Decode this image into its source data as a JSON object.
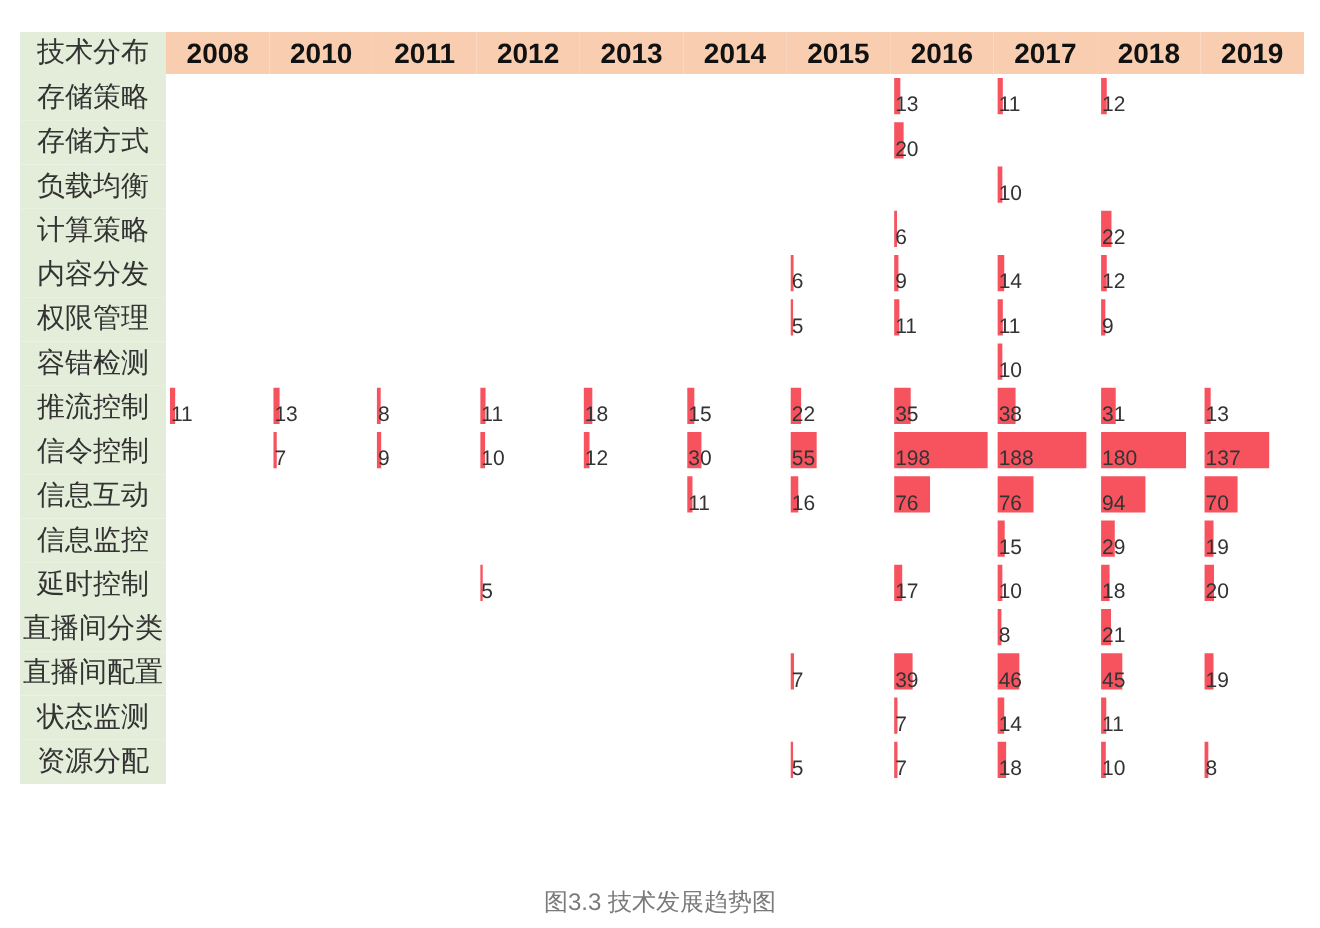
{
  "chart_data": {
    "type": "heatmap",
    "ylabel": "技术分布",
    "annotations": [
      "图3.3 技术发展趋势图"
    ],
    "categories": [
      "2008",
      "2010",
      "2011",
      "2012",
      "2013",
      "2014",
      "2015",
      "2016",
      "2017",
      "2018",
      "2019"
    ],
    "y_categories": [
      "存储策略",
      "存储方式",
      "负载均衡",
      "计算策略",
      "内容分发",
      "权限管理",
      "容错检测",
      "推流控制",
      "信令控制",
      "信息互动",
      "信息监控",
      "延时控制",
      "直播间分类",
      "直播间配置",
      "状态监测",
      "资源分配"
    ],
    "cells": [
      [
        null,
        null,
        null,
        null,
        null,
        null,
        null,
        13,
        11,
        12,
        null
      ],
      [
        null,
        null,
        null,
        null,
        null,
        null,
        null,
        20,
        null,
        null,
        null
      ],
      [
        null,
        null,
        null,
        null,
        null,
        null,
        null,
        null,
        10,
        null,
        null
      ],
      [
        null,
        null,
        null,
        null,
        null,
        null,
        null,
        6,
        null,
        22,
        null
      ],
      [
        null,
        null,
        null,
        null,
        null,
        null,
        6,
        9,
        14,
        12,
        null
      ],
      [
        null,
        null,
        null,
        null,
        null,
        null,
        5,
        11,
        11,
        9,
        null
      ],
      [
        null,
        null,
        null,
        null,
        null,
        null,
        null,
        null,
        10,
        null,
        null
      ],
      [
        11,
        13,
        8,
        11,
        18,
        15,
        22,
        35,
        38,
        31,
        13
      ],
      [
        null,
        7,
        9,
        10,
        12,
        30,
        55,
        198,
        188,
        180,
        137
      ],
      [
        null,
        null,
        null,
        null,
        null,
        11,
        16,
        76,
        76,
        94,
        70
      ],
      [
        null,
        null,
        null,
        null,
        null,
        null,
        null,
        null,
        15,
        29,
        19
      ],
      [
        null,
        null,
        null,
        5,
        null,
        null,
        null,
        17,
        10,
        18,
        20
      ],
      [
        null,
        null,
        null,
        null,
        null,
        null,
        null,
        null,
        8,
        21,
        null
      ],
      [
        null,
        null,
        null,
        null,
        null,
        null,
        7,
        39,
        46,
        45,
        19
      ],
      [
        null,
        null,
        null,
        null,
        null,
        null,
        null,
        7,
        14,
        11,
        null
      ],
      [
        null,
        null,
        null,
        null,
        null,
        null,
        5,
        7,
        18,
        10,
        8
      ]
    ],
    "color": "#f7535f",
    "data_labels": true
  }
}
